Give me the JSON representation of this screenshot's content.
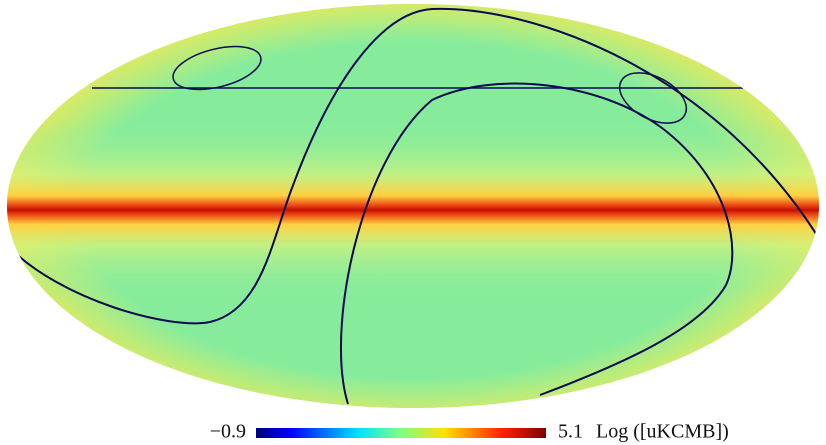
{
  "colorbar": {
    "min": {
      "value": -0.9,
      "label": "−0.9"
    },
    "max": 5.1,
    "unit": "Log ([uKCMB])"
  }
}
